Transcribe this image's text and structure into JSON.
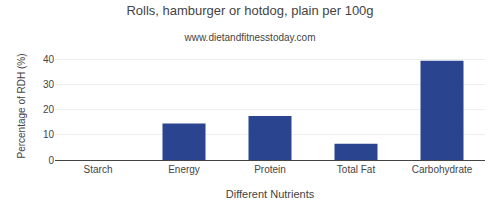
{
  "chart_data": {
    "type": "bar",
    "title": "Rolls, hamburger or hotdog, plain per 100g",
    "subtitle": "www.dietandfitnesstoday.com",
    "xlabel": "Different Nutrients",
    "ylabel": "Percentage of RDH (%)",
    "categories": [
      "Starch",
      "Energy",
      "Protein",
      "Total Fat",
      "Carbohydrate"
    ],
    "values": [
      0,
      14.5,
      17.5,
      6.5,
      39.5
    ],
    "color": "#2b4490",
    "ylim": [
      0,
      43
    ],
    "yticks": [
      0,
      10,
      20,
      30,
      40
    ],
    "grid": true
  }
}
